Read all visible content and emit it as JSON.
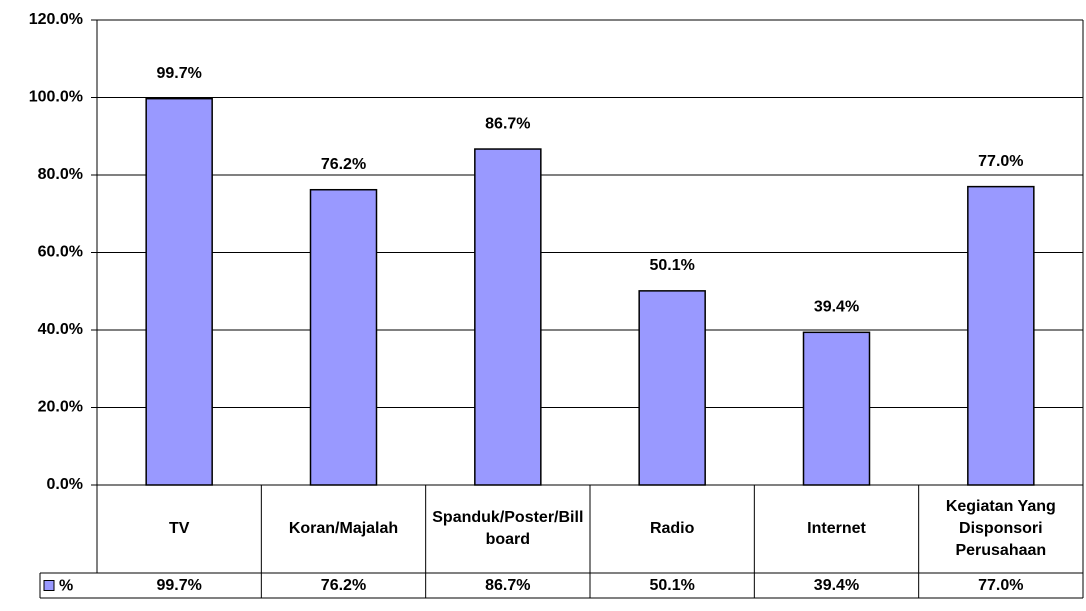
{
  "chart_data": {
    "type": "bar",
    "categories": [
      "TV",
      "Koran/Majalah",
      "Spanduk/Poster/Billboard",
      "Radio",
      "Internet",
      "Kegiatan Yang Disponsori Perusahaan"
    ],
    "series": [
      {
        "name": "%",
        "color": "#9999ff",
        "values": [
          99.7,
          76.2,
          86.7,
          50.1,
          39.4,
          77.0
        ],
        "value_labels": [
          "99.7%",
          "76.2%",
          "86.7%",
          "50.1%",
          "39.4%",
          "77.0%"
        ]
      }
    ],
    "ylim": [
      0,
      120
    ],
    "yticks": [
      {
        "value": 0,
        "label": "0.0%"
      },
      {
        "value": 20,
        "label": "20.0%"
      },
      {
        "value": 40,
        "label": "40.0%"
      },
      {
        "value": 60,
        "label": "60.0%"
      },
      {
        "value": 80,
        "label": "80.0%"
      },
      {
        "value": 100,
        "label": "100.0%"
      },
      {
        "value": 120,
        "label": "120.0%"
      }
    ],
    "grid": true,
    "data_table": true
  }
}
